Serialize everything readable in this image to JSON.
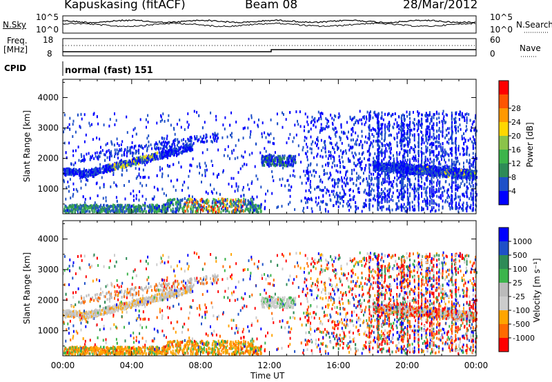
{
  "header": {
    "station": "Kapuskasing (fitACF)",
    "beam": "Beam 08",
    "date": "28/Mar/2012"
  },
  "noise_panel": {
    "left_label": "N.Sky",
    "right_label": "N.Search",
    "left_ticks": [
      "10^5",
      "10^0"
    ],
    "right_ticks": [
      "10^5",
      "10^0"
    ]
  },
  "freq_panel": {
    "left_label_1": "Freq.",
    "left_label_2": "[MHz]",
    "right_label": "Nave",
    "left_ticks": [
      "18",
      "8"
    ],
    "right_ticks": [
      "60",
      "0"
    ]
  },
  "cpid": {
    "label": "CPID",
    "value": "normal (fast) 151"
  },
  "colors": {
    "power": [
      "#0000ff",
      "#1e50c8",
      "#2e8b57",
      "#3cb44b",
      "#8bc34a",
      "#ffd700",
      "#ff9900",
      "#ff5500",
      "#ff0000"
    ],
    "velocity": [
      "#ff0000",
      "#ff6a00",
      "#ffa500",
      "#cccccc",
      "#bbbbbb",
      "#3cb44b",
      "#2e8b57",
      "#1e50c8",
      "#0000ff"
    ]
  },
  "chart_data": [
    {
      "type": "heatmap",
      "name": "Power",
      "ylabel": "Slant Range [km]",
      "yticks": [
        "1000",
        "2000",
        "3000",
        "4000"
      ],
      "ylim": [
        180,
        4600
      ],
      "colorbar_label": "Power [dB]",
      "colorbar_ticks": [
        "4",
        "8",
        "12",
        "16",
        "20",
        "24",
        "28"
      ],
      "color_range": [
        0,
        30
      ]
    },
    {
      "type": "heatmap",
      "name": "Velocity",
      "ylabel": "Slant Range [km]",
      "yticks": [
        "1000",
        "2000",
        "3000",
        "4000"
      ],
      "ylim": [
        180,
        4600
      ],
      "colorbar_label": "Velocity [m s⁻¹]",
      "colorbar_ticks": [
        "1000",
        "500",
        "100",
        "25",
        "-25",
        "-100",
        "-500",
        "-1000"
      ],
      "color_range": [
        -1000,
        1000
      ]
    }
  ],
  "xaxis": {
    "label": "Time UT",
    "ticks": [
      "00:00",
      "04:00",
      "08:00",
      "12:00",
      "16:00",
      "20:00",
      "00:00"
    ],
    "range_hours": [
      0,
      24
    ]
  }
}
